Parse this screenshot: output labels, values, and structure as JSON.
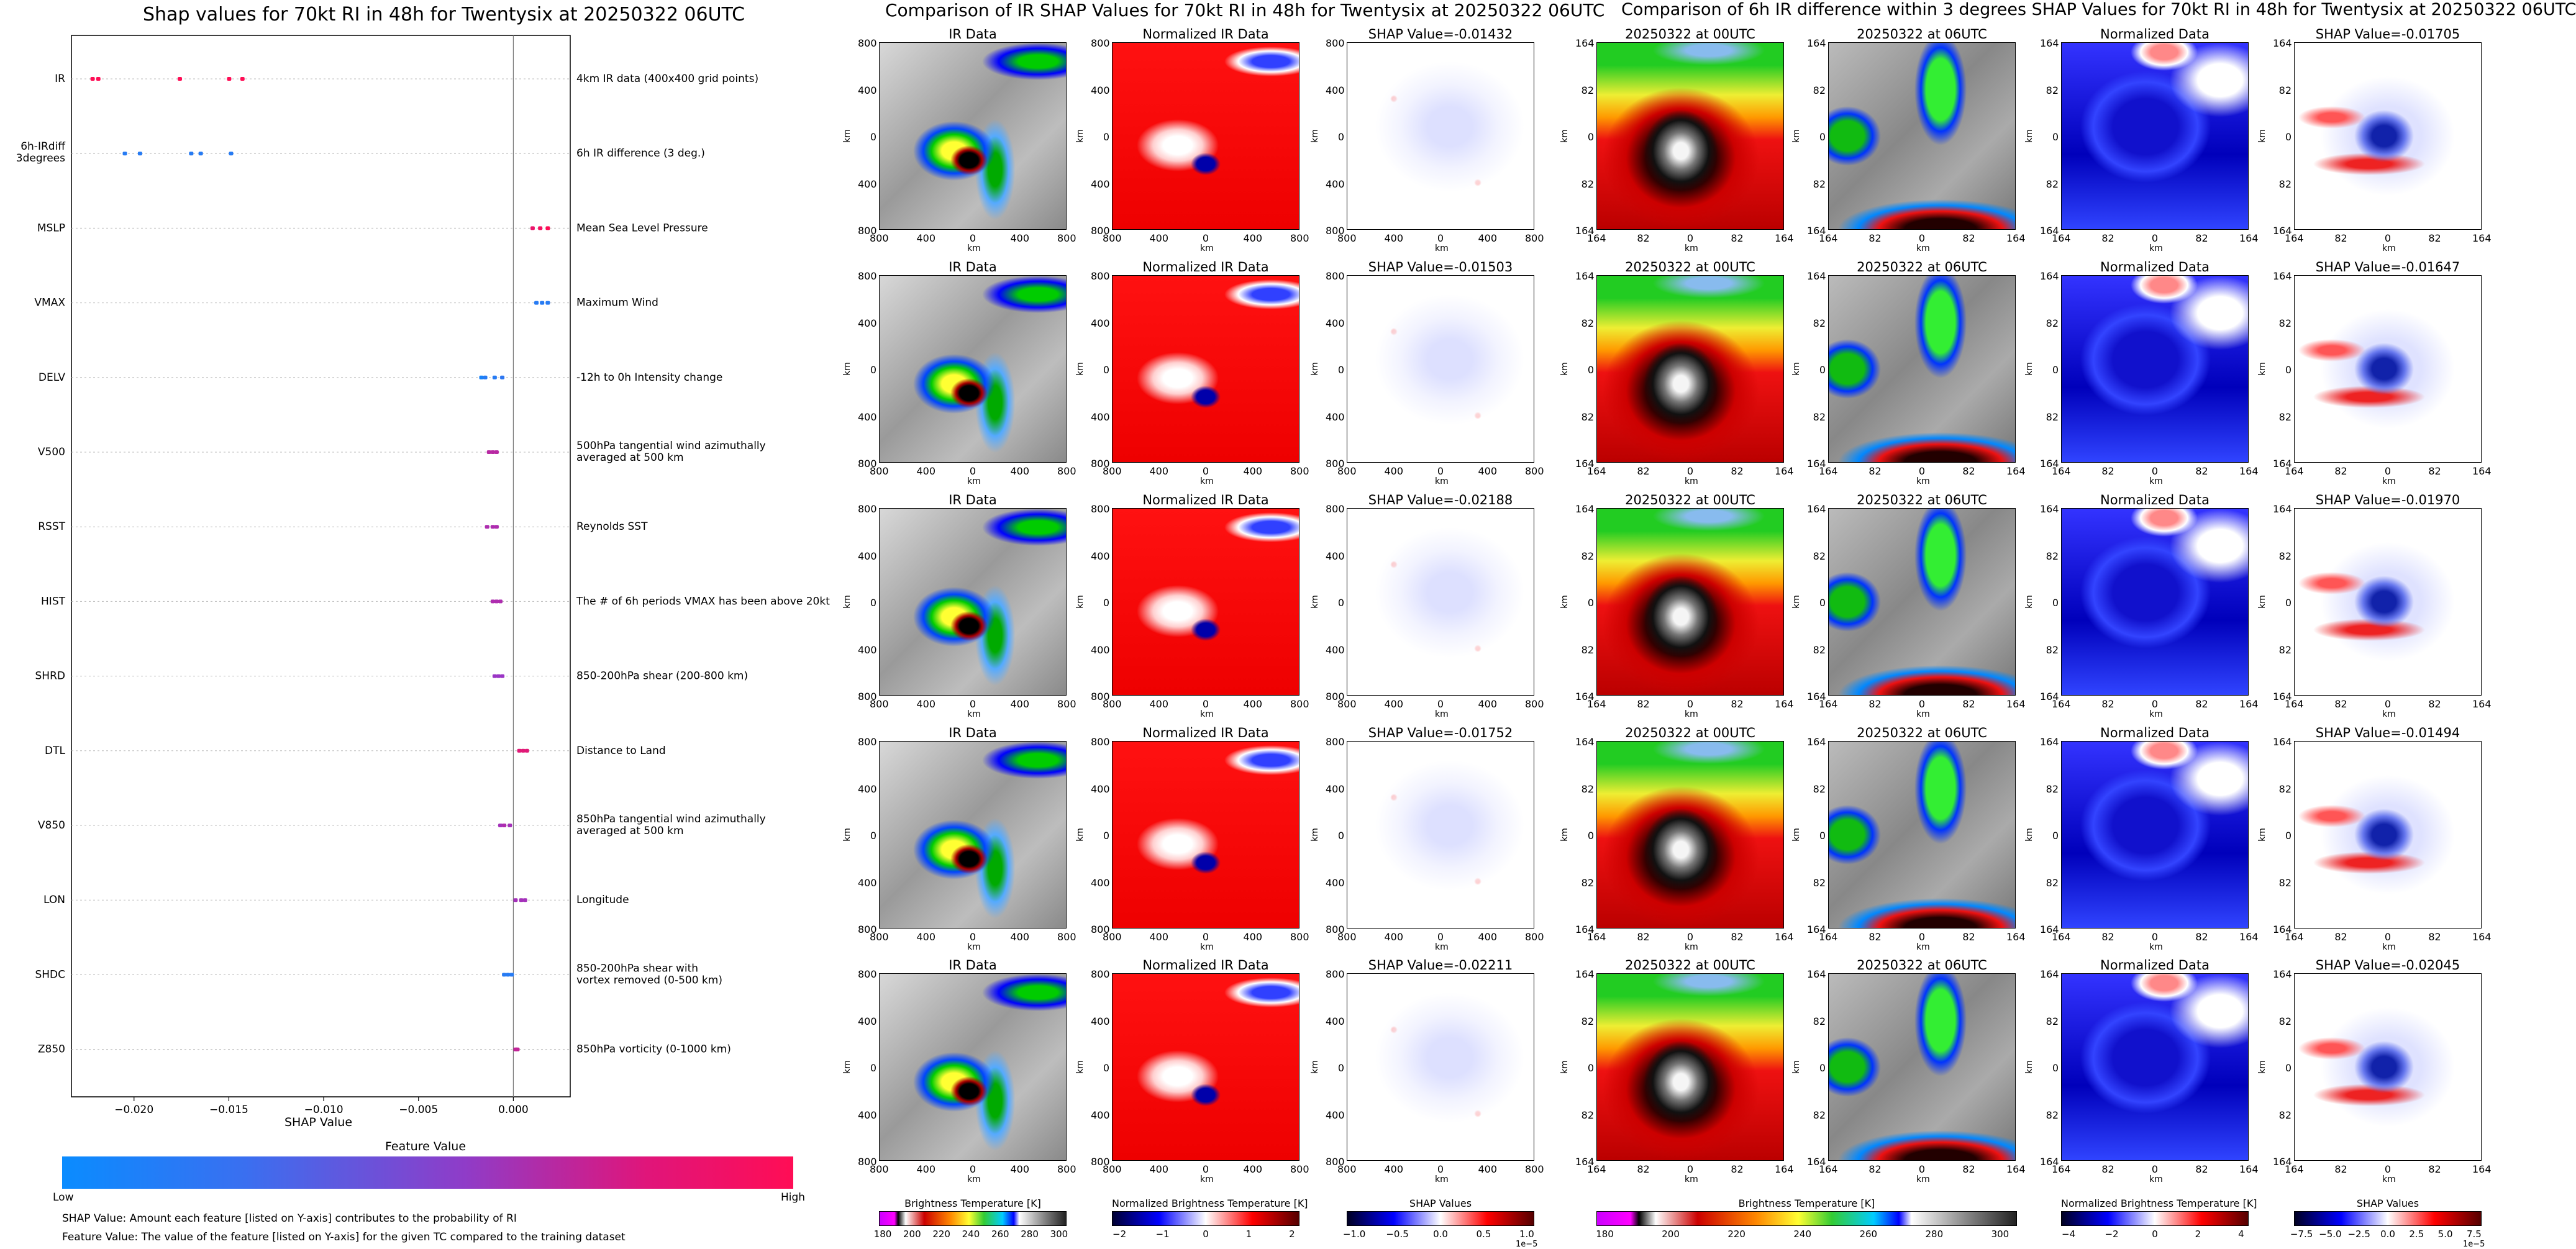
{
  "left": {
    "title": "Shap values for 70kt RI in 48h for Twentysix at 20250322 06UTC",
    "xlabel": "SHAP Value",
    "xticks": [
      "−0.020",
      "−0.015",
      "−0.010",
      "−0.005",
      "0.000"
    ],
    "colorbar": {
      "title": "Feature Value",
      "low": "Low",
      "high": "High"
    },
    "notes": [
      "SHAP Value: Amount each feature [listed on Y-axis] contributes to the probability of RI",
      "Feature Value: The value of the feature [listed on Y-axis] for the given TC compared to the training dataset"
    ]
  },
  "middle": {
    "title": "Comparison of IR SHAP Values for 70kt RI in 48h for Twentysix at 20250322 06UTC",
    "col_titles": [
      "IR Data",
      "Normalized IR Data"
    ],
    "shap_prefix": "SHAP Value=",
    "shap_values": [
      "-0.01432",
      "-0.01503",
      "-0.02188",
      "-0.01752",
      "-0.02211"
    ],
    "yticks": [
      "800",
      "400",
      "0",
      "400",
      "800"
    ],
    "xticks": [
      "800",
      "400",
      "0",
      "400",
      "800"
    ],
    "axis_label": "km",
    "colorbars": [
      {
        "label": "Brightness Temperature [K]",
        "ticks": [
          "180",
          "200",
          "220",
          "240",
          "260",
          "280",
          "300"
        ]
      },
      {
        "label": "Normalized Brightness Temperature [K]",
        "ticks": [
          "−2",
          "−1",
          "0",
          "1",
          "2"
        ]
      },
      {
        "label": "SHAP Values",
        "ticks": [
          "−1.0",
          "−0.5",
          "0.0",
          "0.5",
          "1.0"
        ],
        "exponent": "1e−5"
      }
    ]
  },
  "right": {
    "title": "Comparison of 6h IR difference within 3 degrees SHAP Values for 70kt RI in 48h for Twentysix at 20250322 06UTC",
    "col_titles": [
      "20250322 at 00UTC",
      "20250322 at 06UTC",
      "Normalized Data"
    ],
    "shap_prefix": "SHAP Value=",
    "shap_values": [
      "-0.01705",
      "-0.01647",
      "-0.01970",
      "-0.01494",
      "-0.02045"
    ],
    "yticks": [
      "164",
      "82",
      "0",
      "82",
      "164"
    ],
    "xticks": [
      "164",
      "82",
      "0",
      "82",
      "164"
    ],
    "axis_label": "km",
    "colorbars": [
      {
        "label": "Brightness Temperature [K]",
        "ticks": [
          "180",
          "200",
          "220",
          "240",
          "260",
          "280",
          "300"
        ]
      },
      {
        "label": "Normalized Brightness Temperature [K]",
        "ticks": [
          "−4",
          "−2",
          "0",
          "2",
          "4"
        ]
      },
      {
        "label": "SHAP Values",
        "ticks": [
          "−7.5",
          "−5.0",
          "−2.5",
          "0.0",
          "2.5",
          "5.0",
          "7.5"
        ],
        "exponent": "1e−5"
      }
    ]
  },
  "chart_data": {
    "type": "scatter",
    "title": "Shap values for 70kt RI in 48h for Twentysix at 20250322 06UTC",
    "xlabel": "SHAP Value",
    "xlim": [
      -0.0233,
      0.003
    ],
    "features": [
      {
        "name": "IR",
        "description": "4km IR data (400x400 grid points)",
        "points": [
          [
            -0.0222,
            1.0
          ],
          [
            -0.0219,
            1.0
          ],
          [
            -0.0176,
            1.0
          ],
          [
            -0.015,
            1.0
          ],
          [
            -0.0143,
            1.0
          ]
        ]
      },
      {
        "name": "6h-IRdiff 3degrees",
        "description": "6h IR difference (3 deg.)",
        "points": [
          [
            -0.0205,
            0.1
          ],
          [
            -0.0197,
            0.1
          ],
          [
            -0.017,
            0.1
          ],
          [
            -0.0165,
            0.1
          ],
          [
            -0.0149,
            0.1
          ]
        ]
      },
      {
        "name": "MSLP",
        "description": "Mean Sea Level Pressure",
        "points": [
          [
            0.001,
            0.9
          ],
          [
            0.0014,
            0.95
          ],
          [
            0.0018,
            1.0
          ]
        ]
      },
      {
        "name": "VMAX",
        "description": "Maximum Wind",
        "points": [
          [
            0.0012,
            0.1
          ],
          [
            0.0015,
            0.1
          ],
          [
            0.0018,
            0.1
          ]
        ]
      },
      {
        "name": "DELV",
        "description": "-12h to 0h Intensity change",
        "points": [
          [
            -0.0017,
            0.05
          ],
          [
            -0.0015,
            0.1
          ],
          [
            -0.001,
            0.1
          ],
          [
            -0.0006,
            0.12
          ]
        ]
      },
      {
        "name": "V500",
        "description": "500hPa tangential wind azimuthally averaged at 500 km",
        "points": [
          [
            -0.0013,
            0.65
          ],
          [
            -0.0011,
            0.65
          ],
          [
            -0.0009,
            0.65
          ]
        ]
      },
      {
        "name": "RSST",
        "description": "Reynolds SST",
        "points": [
          [
            -0.0014,
            0.6
          ],
          [
            -0.0011,
            0.6
          ],
          [
            -0.0009,
            0.6
          ]
        ]
      },
      {
        "name": "HIST",
        "description": "The # of 6h periods VMAX has been above 20kt",
        "points": [
          [
            -0.0011,
            0.6
          ],
          [
            -0.0009,
            0.6
          ],
          [
            -0.0007,
            0.6
          ]
        ]
      },
      {
        "name": "SHRD",
        "description": "850-200hPa shear (200-800 km)",
        "points": [
          [
            -0.001,
            0.5
          ],
          [
            -0.0008,
            0.5
          ],
          [
            -0.0006,
            0.5
          ]
        ]
      },
      {
        "name": "DTL",
        "description": "Distance to Land",
        "points": [
          [
            0.0003,
            0.85
          ],
          [
            0.0005,
            0.85
          ],
          [
            0.0007,
            0.85
          ]
        ]
      },
      {
        "name": "V850",
        "description": "850hPa tangential wind azimuthally averaged at 500 km",
        "points": [
          [
            -0.0007,
            0.55
          ],
          [
            -0.0005,
            0.6
          ],
          [
            -0.0002,
            0.55
          ]
        ]
      },
      {
        "name": "LON",
        "description": "Longitude",
        "points": [
          [
            0.0001,
            0.55
          ],
          [
            0.0004,
            0.55
          ],
          [
            0.0006,
            0.55
          ]
        ]
      },
      {
        "name": "SHDC",
        "description": "850-200hPa shear with vortex removed (0-500 km)",
        "points": [
          [
            -0.0005,
            0.1
          ],
          [
            -0.0003,
            0.1
          ],
          [
            -0.0001,
            0.1
          ]
        ]
      },
      {
        "name": "Z850",
        "description": "850hPa vorticity (0-1000 km)",
        "points": [
          [
            0.0001,
            0.7
          ],
          [
            0.0002,
            0.7
          ]
        ]
      }
    ]
  }
}
